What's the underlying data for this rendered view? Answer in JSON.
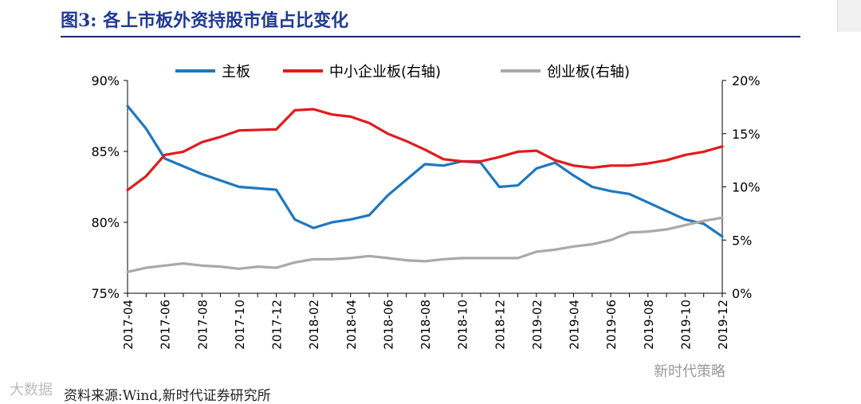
{
  "title": "图3:   各上市板外资持股市值占比变化",
  "source": "资料来源:Wind,新时代证券研究所",
  "watermarks": {
    "left": "大数据",
    "right": "新时代策略"
  },
  "colors": {
    "main": "#1f77c0",
    "sme": "#e31a1c",
    "gem": "#a9a9a9",
    "title": "#1f3a93"
  },
  "chart_data": {
    "type": "line",
    "title": "各上市板外资持股市值占比变化",
    "legend": [
      "主板",
      "中小企业板(右轴)",
      "创业板(右轴)"
    ],
    "legend_position": "top-center",
    "left_axis": {
      "min": 75,
      "max": 90,
      "ticks": [
        75,
        80,
        85,
        90
      ],
      "tick_labels": [
        "75%",
        "80%",
        "85%",
        "90%"
      ]
    },
    "right_axis": {
      "min": 0,
      "max": 20,
      "ticks": [
        0,
        5,
        10,
        15,
        20
      ],
      "tick_labels": [
        "0%",
        "5%",
        "10%",
        "15%",
        "20%"
      ]
    },
    "x_labels": [
      "2017-04",
      "2017-06",
      "2017-08",
      "2017-10",
      "2017-12",
      "2018-02",
      "2018-04",
      "2018-06",
      "2018-08",
      "2018-10",
      "2018-12",
      "2019-02",
      "2019-04",
      "2019-06",
      "2019-08",
      "2019-10",
      "2019-12"
    ],
    "x_range": [
      0,
      32
    ],
    "series": [
      {
        "name": "主板",
        "axis": "left",
        "color": "#1f77c0",
        "x": [
          0,
          1,
          2,
          4,
          6,
          8,
          9,
          10,
          11,
          12,
          13,
          14,
          15,
          16,
          17,
          18,
          19,
          20,
          21,
          22,
          23,
          24,
          25,
          26,
          27,
          28,
          29,
          30,
          31,
          32
        ],
        "y": [
          88.2,
          86.6,
          84.5,
          83.4,
          82.5,
          82.3,
          80.2,
          79.6,
          80.0,
          80.2,
          80.5,
          81.9,
          83.0,
          84.1,
          84.0,
          84.3,
          84.2,
          82.5,
          82.6,
          83.8,
          84.2,
          83.3,
          82.5,
          82.2,
          82.0,
          81.4,
          80.8,
          80.2,
          79.9,
          79.0
        ],
        "values_note": "percent"
      },
      {
        "name": "中小企业板(右轴)",
        "axis": "right",
        "color": "#e31a1c",
        "x": [
          0,
          1,
          2,
          3,
          4,
          5,
          6,
          8,
          9,
          10,
          11,
          12,
          13,
          14,
          15,
          16,
          17,
          18,
          19,
          20,
          21,
          22,
          23,
          24,
          25,
          26,
          27,
          28,
          29,
          30,
          31,
          32
        ],
        "y": [
          9.7,
          11.0,
          13.0,
          13.3,
          14.2,
          14.7,
          15.3,
          15.4,
          17.2,
          17.3,
          16.8,
          16.6,
          16.0,
          15.0,
          14.3,
          13.5,
          12.6,
          12.4,
          12.4,
          12.8,
          13.3,
          13.4,
          12.5,
          12.0,
          11.8,
          12.0,
          12.0,
          12.2,
          12.5,
          13.0,
          13.3,
          13.8
        ],
        "values_note": "percent"
      },
      {
        "name": "创业板(右轴)",
        "axis": "right",
        "color": "#a9a9a9",
        "x": [
          0,
          1,
          2,
          3,
          4,
          5,
          6,
          7,
          8,
          9,
          10,
          11,
          12,
          13,
          14,
          15,
          16,
          17,
          18,
          19,
          20,
          21,
          22,
          23,
          24,
          25,
          26,
          27,
          28,
          29,
          30,
          31,
          32
        ],
        "y": [
          2.0,
          2.4,
          2.6,
          2.8,
          2.6,
          2.5,
          2.3,
          2.5,
          2.4,
          2.9,
          3.2,
          3.2,
          3.3,
          3.5,
          3.3,
          3.1,
          3.0,
          3.2,
          3.3,
          3.3,
          3.3,
          3.3,
          3.9,
          4.1,
          4.4,
          4.6,
          5.0,
          5.7,
          5.8,
          6.0,
          6.4,
          6.8,
          7.1
        ],
        "values_note": "percent"
      }
    ]
  }
}
